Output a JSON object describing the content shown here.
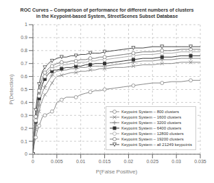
{
  "chart_data": {
    "type": "line",
    "title": "ROC Curves – Comparison of performance for different numbers of clusters\nin the Keypoint-based System, StreetScenes Subset Database",
    "x_label": "P(False Positive)",
    "y_label": "P(Detection)",
    "xlim": [
      0,
      0.035
    ],
    "ylim": [
      0,
      1.0
    ],
    "xticks": [
      0,
      0.005,
      0.01,
      0.015,
      0.02,
      0.025,
      0.03,
      0.035
    ],
    "yticks": [
      0,
      0.1,
      0.2,
      0.3,
      0.4,
      0.5,
      0.6,
      0.7,
      0.8,
      0.9,
      1.0
    ],
    "grid": true,
    "legend": "lower right",
    "x": [
      0,
      0.0002,
      0.0004,
      0.0006,
      0.0008,
      0.001,
      0.0013,
      0.0016,
      0.002,
      0.0025,
      0.003,
      0.0035,
      0.004,
      0.0045,
      0.005,
      0.006,
      0.007,
      0.008,
      0.009,
      0.01,
      0.011,
      0.012,
      0.013,
      0.014,
      0.015,
      0.017,
      0.019,
      0.021,
      0.023,
      0.025,
      0.027,
      0.029,
      0.031,
      0.033,
      0.035
    ],
    "series": [
      {
        "name": "Keypoint System – 800 clusters",
        "color": "#888888",
        "marker": "circle_open",
        "values": [
          0,
          0.06,
          0.1,
          0.13,
          0.16,
          0.19,
          0.22,
          0.25,
          0.29,
          0.3,
          0.31,
          0.32,
          0.33,
          0.35,
          0.4,
          0.42,
          0.44,
          0.44,
          0.44,
          0.46,
          0.47,
          0.48,
          0.49,
          0.49,
          0.5,
          0.51,
          0.52,
          0.53,
          0.54,
          0.55,
          0.55,
          0.56,
          0.56,
          0.57,
          0.57
        ]
      },
      {
        "name": "Keypoint System – 1600 clusters",
        "color": "#888888",
        "marker": "x",
        "values": [
          0,
          0.08,
          0.14,
          0.19,
          0.24,
          0.28,
          0.33,
          0.38,
          0.42,
          0.46,
          0.48,
          0.52,
          0.55,
          0.58,
          0.6,
          0.61,
          0.62,
          0.63,
          0.63,
          0.64,
          0.64,
          0.65,
          0.65,
          0.66,
          0.66,
          0.67,
          0.67,
          0.68,
          0.69,
          0.69,
          0.7,
          0.7,
          0.71,
          0.71,
          0.71
        ]
      },
      {
        "name": "Keypoint System – 3200 clusters",
        "color": "#888888",
        "marker": "plus",
        "values": [
          0,
          0.09,
          0.16,
          0.22,
          0.27,
          0.32,
          0.38,
          0.43,
          0.48,
          0.52,
          0.55,
          0.58,
          0.61,
          0.63,
          0.64,
          0.65,
          0.65,
          0.66,
          0.66,
          0.67,
          0.67,
          0.68,
          0.68,
          0.68,
          0.68,
          0.69,
          0.7,
          0.71,
          0.72,
          0.72,
          0.73,
          0.73,
          0.74,
          0.74,
          0.74
        ]
      },
      {
        "name": "Keypoint System – 6400 clusters",
        "color": "#333333",
        "marker": "square",
        "values": [
          0,
          0.1,
          0.18,
          0.25,
          0.31,
          0.37,
          0.43,
          0.49,
          0.54,
          0.58,
          0.61,
          0.63,
          0.64,
          0.65,
          0.65,
          0.66,
          0.67,
          0.67,
          0.68,
          0.68,
          0.69,
          0.69,
          0.7,
          0.7,
          0.7,
          0.71,
          0.72,
          0.73,
          0.74,
          0.74,
          0.75,
          0.75,
          0.76,
          0.76,
          0.76
        ]
      },
      {
        "name": "Keypoint System – 12800 clusters",
        "color": "#aaaaaa",
        "marker": "circle_open",
        "values": [
          0,
          0.11,
          0.19,
          0.26,
          0.32,
          0.38,
          0.45,
          0.5,
          0.56,
          0.6,
          0.63,
          0.65,
          0.66,
          0.67,
          0.68,
          0.69,
          0.69,
          0.7,
          0.7,
          0.71,
          0.71,
          0.72,
          0.72,
          0.73,
          0.73,
          0.74,
          0.75,
          0.76,
          0.77,
          0.77,
          0.78,
          0.78,
          0.79,
          0.79,
          0.79
        ]
      },
      {
        "name": "Keypoint System – 19200 clusters",
        "color": "#777777",
        "marker": "circle_open",
        "values": [
          0,
          0.12,
          0.21,
          0.29,
          0.36,
          0.42,
          0.49,
          0.54,
          0.59,
          0.63,
          0.65,
          0.67,
          0.68,
          0.69,
          0.7,
          0.71,
          0.71,
          0.72,
          0.72,
          0.73,
          0.73,
          0.74,
          0.74,
          0.75,
          0.75,
          0.76,
          0.77,
          0.78,
          0.79,
          0.79,
          0.8,
          0.8,
          0.81,
          0.81,
          0.81
        ]
      },
      {
        "name": "Keypoint System – all 21249 keypoints",
        "color": "#444444",
        "marker": "triangle_down_open",
        "values": [
          0,
          0.14,
          0.25,
          0.34,
          0.41,
          0.47,
          0.54,
          0.59,
          0.64,
          0.67,
          0.69,
          0.71,
          0.72,
          0.73,
          0.74,
          0.75,
          0.75,
          0.76,
          0.76,
          0.77,
          0.77,
          0.78,
          0.78,
          0.78,
          0.79,
          0.8,
          0.81,
          0.82,
          0.82,
          0.83,
          0.83,
          0.83,
          0.83,
          0.83,
          0.83
        ]
      }
    ]
  }
}
